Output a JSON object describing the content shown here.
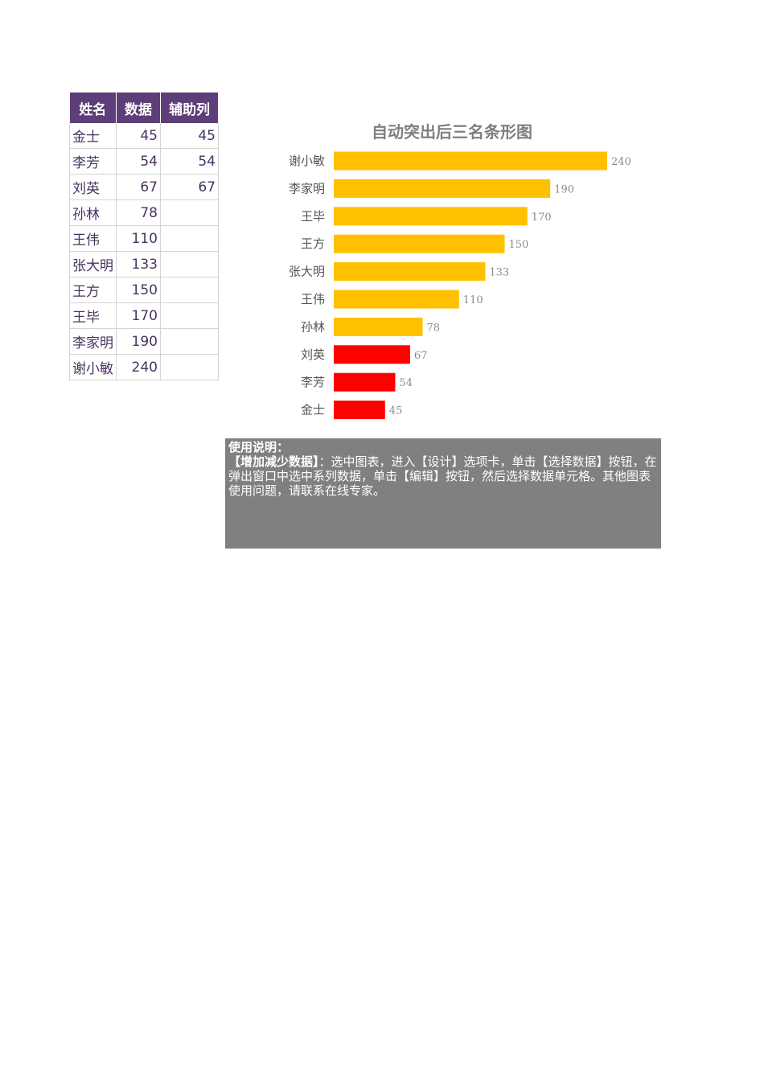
{
  "table": {
    "headers": [
      "姓名",
      "数据",
      "辅助列"
    ],
    "rows": [
      {
        "name": "金士",
        "value": "45",
        "aux": "45"
      },
      {
        "name": "李芳",
        "value": "54",
        "aux": "54"
      },
      {
        "name": "刘英",
        "value": "67",
        "aux": "67"
      },
      {
        "name": "孙林",
        "value": "78",
        "aux": ""
      },
      {
        "name": "王伟",
        "value": "110",
        "aux": ""
      },
      {
        "name": "张大明",
        "value": "133",
        "aux": ""
      },
      {
        "name": "王方",
        "value": "150",
        "aux": ""
      },
      {
        "name": "王毕",
        "value": "170",
        "aux": ""
      },
      {
        "name": "李家明",
        "value": "190",
        "aux": ""
      },
      {
        "name": "谢小敏",
        "value": "240",
        "aux": ""
      }
    ]
  },
  "chart_data": {
    "type": "bar",
    "orientation": "horizontal",
    "title": "自动突出后三名条形图",
    "categories": [
      "谢小敏",
      "李家明",
      "王毕",
      "王方",
      "张大明",
      "王伟",
      "孙林",
      "刘英",
      "李芳",
      "金士"
    ],
    "values": [
      240,
      190,
      170,
      150,
      133,
      110,
      78,
      67,
      54,
      45
    ],
    "highlighted": [
      "刘英",
      "李芳",
      "金士"
    ],
    "colors": {
      "normal": "#ffc000",
      "highlight": "#ff0000"
    },
    "xlim": [
      0,
      240
    ],
    "grid": false,
    "legend": "none",
    "data_labels": true
  },
  "usage": {
    "title": "使用说明：",
    "bold_lead": "【增加减少数据】",
    "body": "：选中图表，进入【设计】选项卡，单击【选择数据】按钮，在弹出窗口中选中系列数据，单击【编辑】按钮，然后选择数据单元格。其他图表使用问题，请联系在线专家。"
  },
  "colors": {
    "header_bg": "#5e3e78",
    "text": "#4a3362",
    "note_bg": "#808080"
  }
}
